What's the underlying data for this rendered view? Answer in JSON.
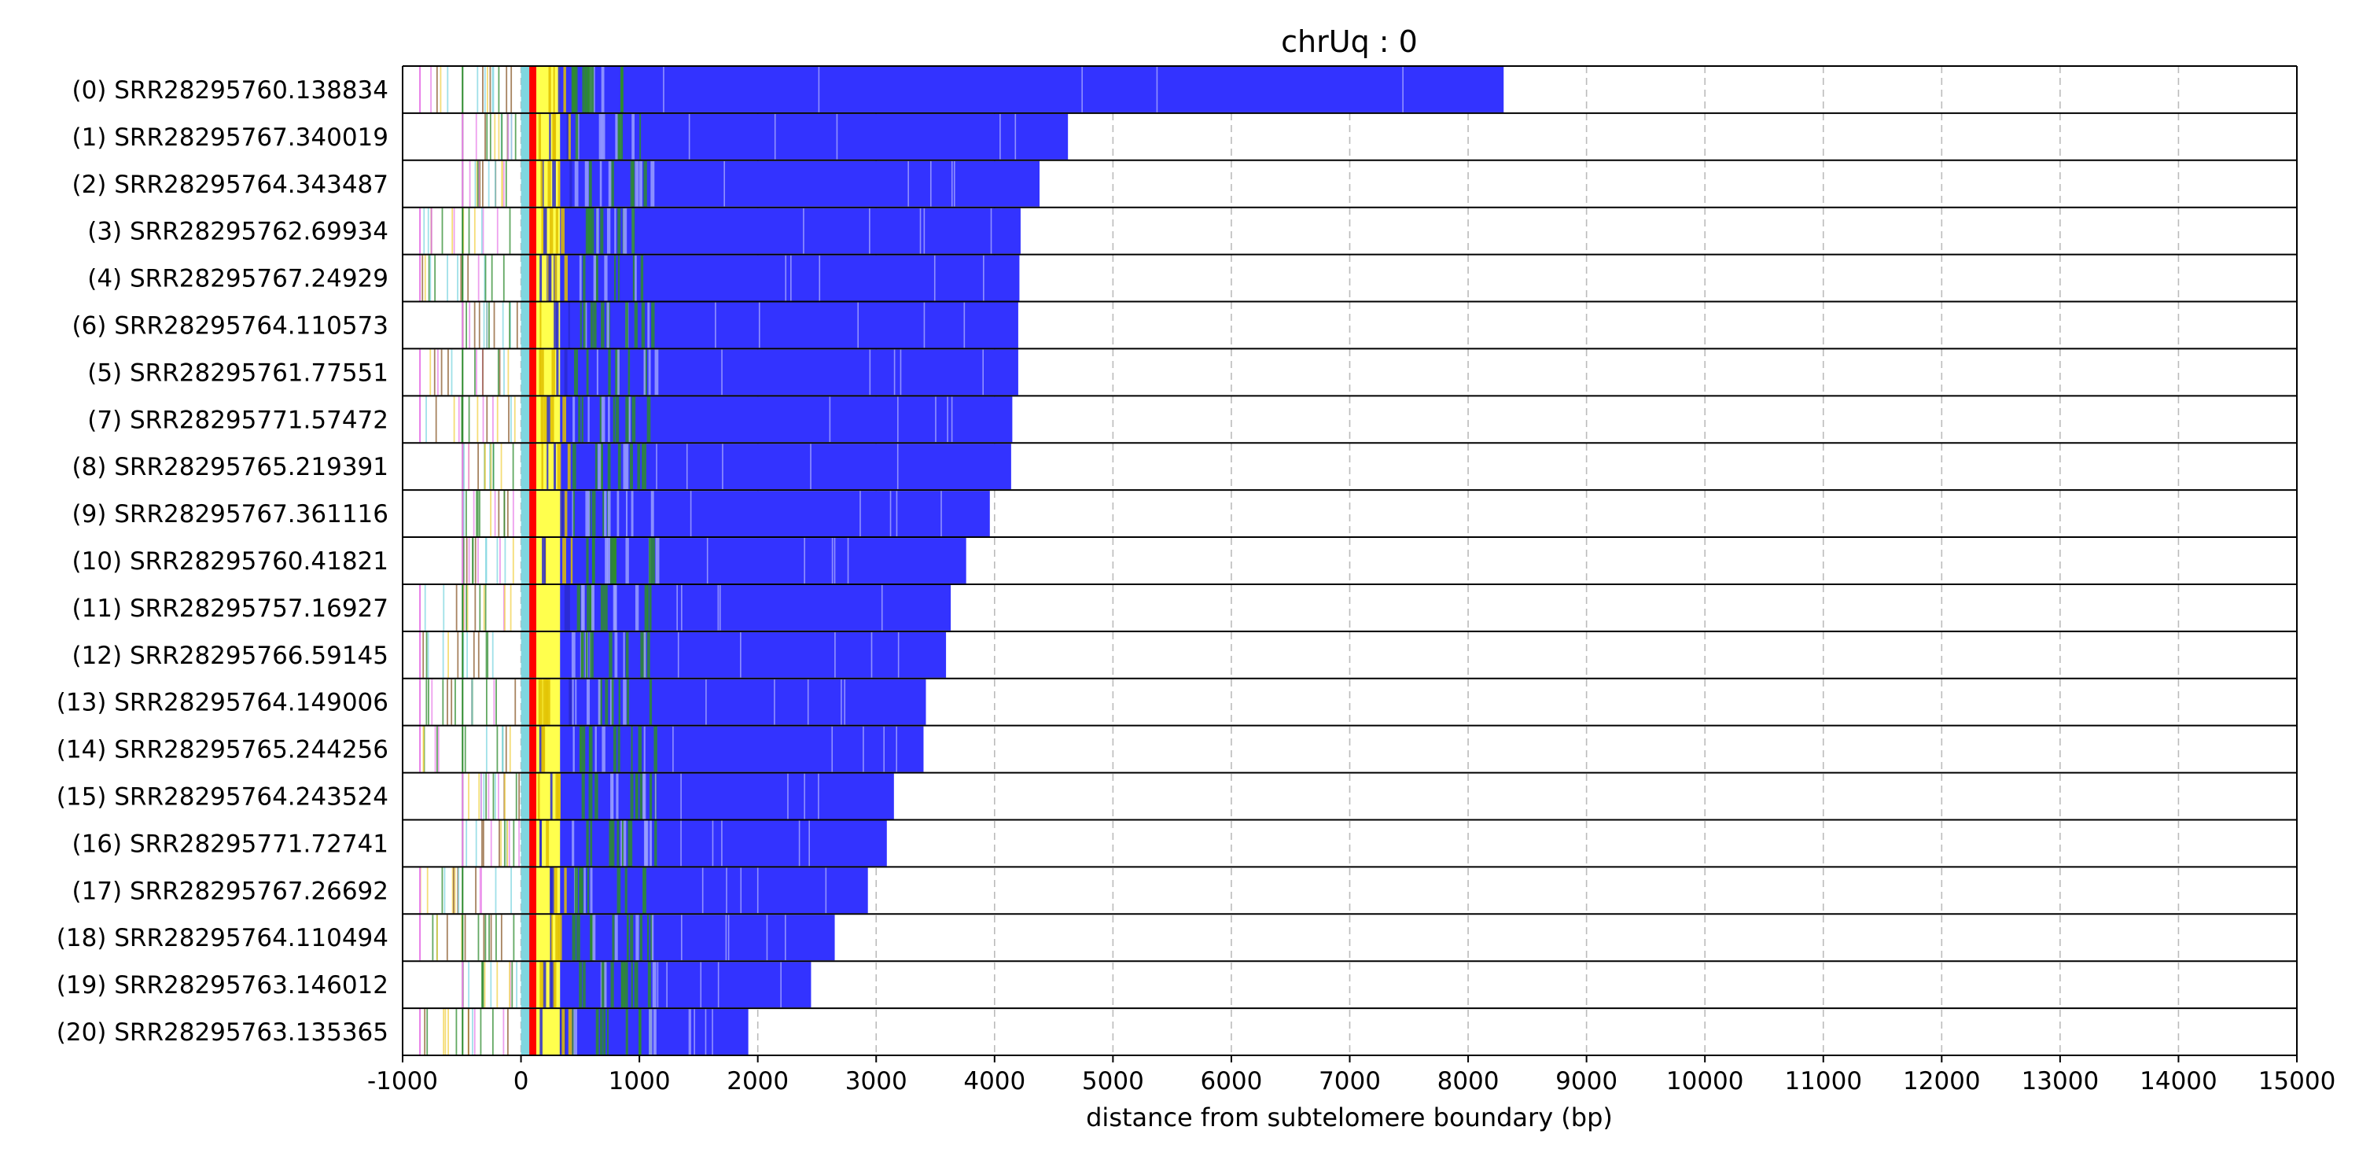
{
  "chart_data": {
    "type": "bar",
    "title": "chrUq : 0",
    "xlabel": "distance from subtelomere boundary (bp)",
    "ylabel": "",
    "xlim": [
      -1000,
      15000
    ],
    "xticks": [
      -1000,
      0,
      1000,
      2000,
      3000,
      4000,
      5000,
      6000,
      7000,
      8000,
      9000,
      10000,
      11000,
      12000,
      13000,
      14000,
      15000
    ],
    "grid": "vertical dashed",
    "colors": {
      "telomere": "#3333ff",
      "subtelomere": "#ffff4d",
      "boundary": "#ff0000",
      "repeat_green": "#2e8b2e",
      "repeat_cyan": "#7fd6e0",
      "repeat_pink": "#e87fe8",
      "grid": "#bbbbbb"
    },
    "categories": [
      "(0) SRR28295760.138834",
      "(1) SRR28295767.340019",
      "(2) SRR28295764.343487",
      "(3) SRR28295762.69934",
      "(4) SRR28295767.24929",
      "(6) SRR28295764.110573",
      "(5) SRR28295761.77551",
      "(7) SRR28295771.57472",
      "(8) SRR28295765.219391",
      "(9) SRR28295767.361116",
      "(10) SRR28295760.41821",
      "(11) SRR28295757.16927",
      "(12) SRR28295766.59145",
      "(13) SRR28295764.149006",
      "(14) SRR28295765.244256",
      "(15) SRR28295764.243524",
      "(16) SRR28295771.72741",
      "(17) SRR28295767.26692",
      "(18) SRR28295764.110494",
      "(19) SRR28295763.146012",
      "(20) SRR28295763.135365"
    ],
    "values": [
      8300,
      4620,
      4380,
      4220,
      4210,
      4200,
      4200,
      4150,
      4140,
      3960,
      3760,
      3630,
      3590,
      3420,
      3400,
      3150,
      3090,
      2930,
      2650,
      2450,
      1920
    ],
    "read_starts": [
      -860,
      -500,
      -500,
      -860,
      -860,
      -500,
      -860,
      -860,
      -500,
      -500,
      -500,
      -860,
      -860,
      -860,
      -860,
      -500,
      -500,
      -860,
      -860,
      -500,
      -860
    ]
  }
}
